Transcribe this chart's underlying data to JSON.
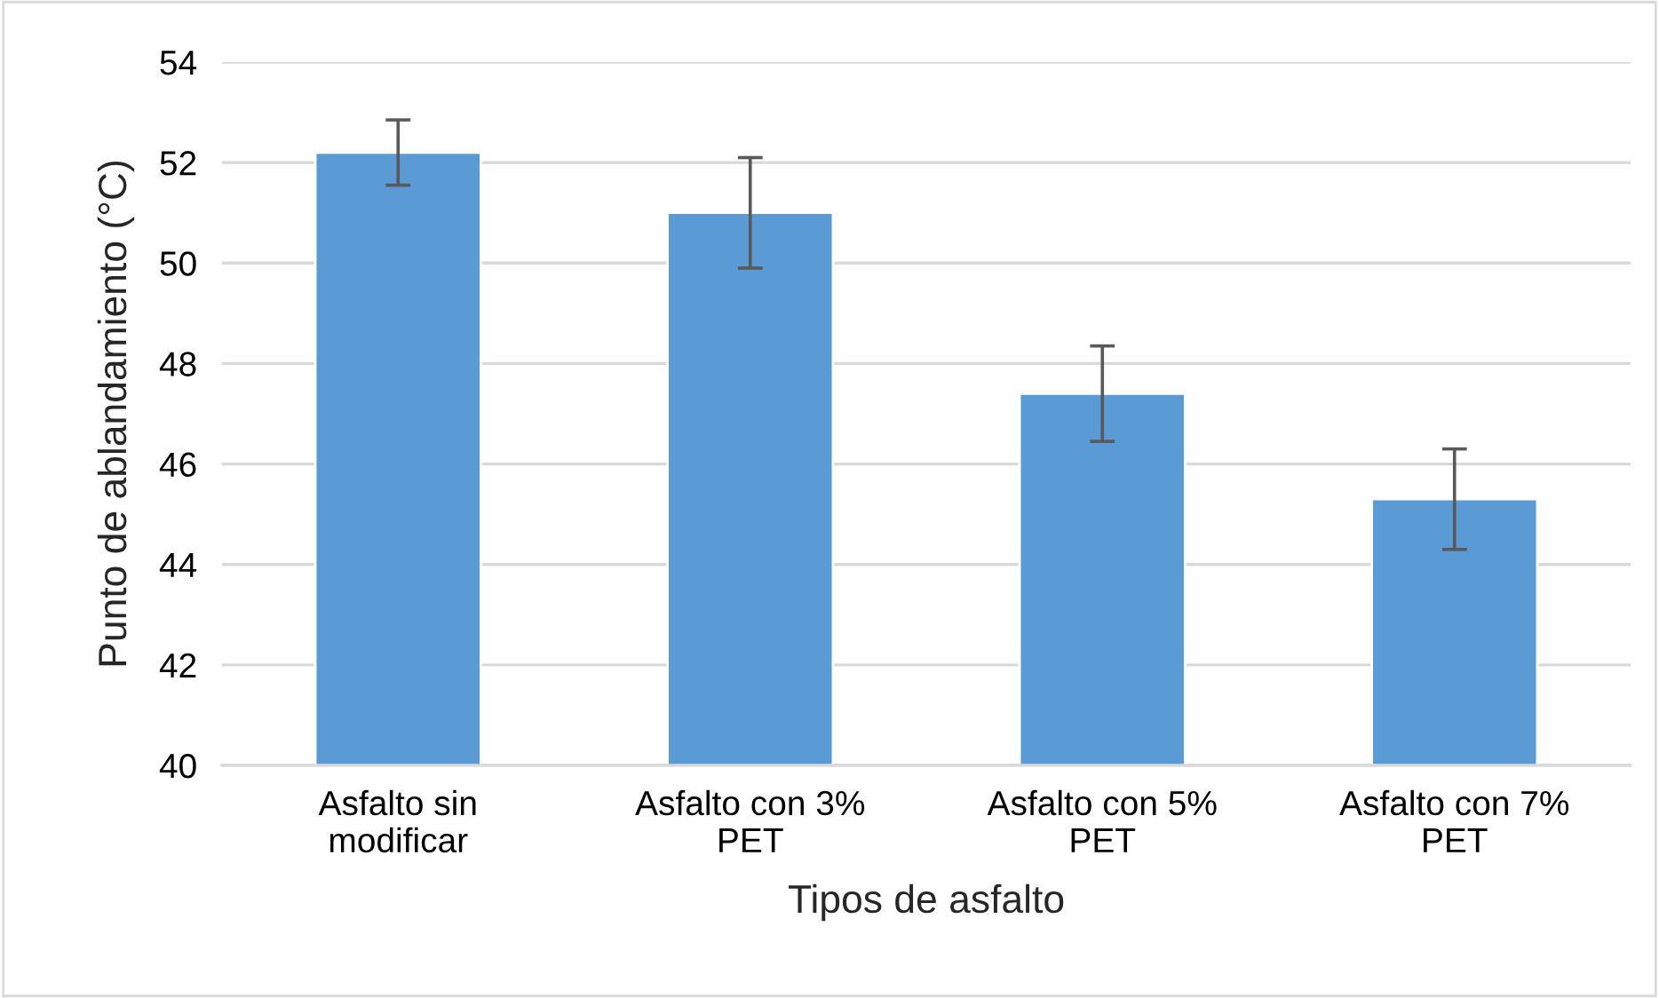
{
  "chart_data": {
    "type": "bar",
    "categories": [
      "Asfalto sin\nmodificar",
      "Asfalto con 3%\nPET",
      "Asfalto con 5%\nPET",
      "Asfalto con 7%\nPET"
    ],
    "values": [
      52.2,
      51.0,
      47.4,
      45.3
    ],
    "errors": [
      0.65,
      1.1,
      0.95,
      1.0
    ],
    "color": "#5b9bd5",
    "xlabel": "Tipos de asfalto",
    "ylabel": "Punto de ablandamiento (°C)",
    "ylim": [
      40,
      54
    ],
    "yticks": [
      40,
      42,
      44,
      46,
      48,
      50,
      52,
      54
    ],
    "grid": "y"
  }
}
